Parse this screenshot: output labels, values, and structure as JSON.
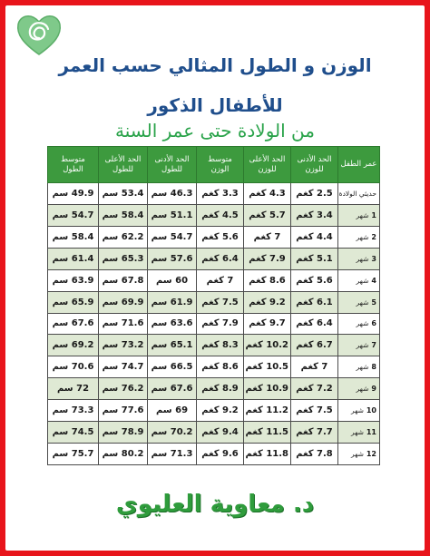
{
  "title_line1": "الوزن و الطول المثالي حسب العمر",
  "title_line2": "للأطفال الذكور",
  "title_line3": "من الولادة حتى عمر السنة",
  "signature": "د. معاوية العليوي",
  "colors": {
    "frame": "#e8141b",
    "header_bg": "#3d9a3e",
    "title": "#1f4e8c",
    "subtitle": "#2aa34a",
    "row_alt": "#dfe9d4"
  },
  "logo": {
    "icon": "heart-spiral-icon"
  },
  "table": {
    "headers": [
      "عمر الطفل",
      "الحد الأدنى للوزن",
      "الحد الأعلى للوزن",
      "متوسط الوزن",
      "الحد الأدنى للطول",
      "الحد الأعلى للطول",
      "متوسط الطول"
    ],
    "month_unit": "شهر",
    "newborn_label": "حديثي الولادة",
    "rows": [
      {
        "age": "",
        "min_w": "2.5 كغم",
        "max_w": "4.3 كغم",
        "avg_w": "3.3 كغم",
        "min_h": "46.3 سم",
        "max_h": "53.4 سم",
        "avg_h": "49.9 سم"
      },
      {
        "age": "1",
        "min_w": "3.4 كغم",
        "max_w": "5.7 كغم",
        "avg_w": "4.5 كغم",
        "min_h": "51.1 سم",
        "max_h": "58.4 سم",
        "avg_h": "54.7 سم"
      },
      {
        "age": "2",
        "min_w": "4.4 كغم",
        "max_w": "7 كغم",
        "avg_w": "5.6 كغم",
        "min_h": "54.7 سم",
        "max_h": "62.2 سم",
        "avg_h": "58.4 سم"
      },
      {
        "age": "3",
        "min_w": "5.1 كغم",
        "max_w": "7.9 كغم",
        "avg_w": "6.4 كغم",
        "min_h": "57.6 سم",
        "max_h": "65.3 سم",
        "avg_h": "61.4 سم"
      },
      {
        "age": "4",
        "min_w": "5.6 كغم",
        "max_w": "8.6 كغم",
        "avg_w": "7 كغم",
        "min_h": "60 سم",
        "max_h": "67.8 سم",
        "avg_h": "63.9 سم"
      },
      {
        "age": "5",
        "min_w": "6.1 كغم",
        "max_w": "9.2 كغم",
        "avg_w": "7.5 كغم",
        "min_h": "61.9 سم",
        "max_h": "69.9 سم",
        "avg_h": "65.9 سم"
      },
      {
        "age": "6",
        "min_w": "6.4 كغم",
        "max_w": "9.7 كغم",
        "avg_w": "7.9 كغم",
        "min_h": "63.6 سم",
        "max_h": "71.6 سم",
        "avg_h": "67.6 سم"
      },
      {
        "age": "7",
        "min_w": "6.7 كغم",
        "max_w": "10.2 كغم",
        "avg_w": "8.3 كغم",
        "min_h": "65.1 سم",
        "max_h": "73.2 سم",
        "avg_h": "69.2 سم"
      },
      {
        "age": "8",
        "min_w": "7 كغم",
        "max_w": "10.5 كغم",
        "avg_w": "8.6 كغم",
        "min_h": "66.5 سم",
        "max_h": "74.7 سم",
        "avg_h": "70.6 سم"
      },
      {
        "age": "9",
        "min_w": "7.2 كغم",
        "max_w": "10.9 كغم",
        "avg_w": "8.9 كغم",
        "min_h": "67.6 سم",
        "max_h": "76.2 سم",
        "avg_h": "72 سم"
      },
      {
        "age": "10",
        "min_w": "7.5 كغم",
        "max_w": "11.2 كغم",
        "avg_w": "9.2 كغم",
        "min_h": "69 سم",
        "max_h": "77.6 سم",
        "avg_h": "73.3 سم"
      },
      {
        "age": "11",
        "min_w": "7.7 كغم",
        "max_w": "11.5 كغم",
        "avg_w": "9.4 كغم",
        "min_h": "70.2 سم",
        "max_h": "78.9 سم",
        "avg_h": "74.5 سم"
      },
      {
        "age": "12",
        "min_w": "7.8 كغم",
        "max_w": "11.8 كغم",
        "avg_w": "9.6 كغم",
        "min_h": "71.3 سم",
        "max_h": "80.2 سم",
        "avg_h": "75.7 سم"
      }
    ]
  }
}
